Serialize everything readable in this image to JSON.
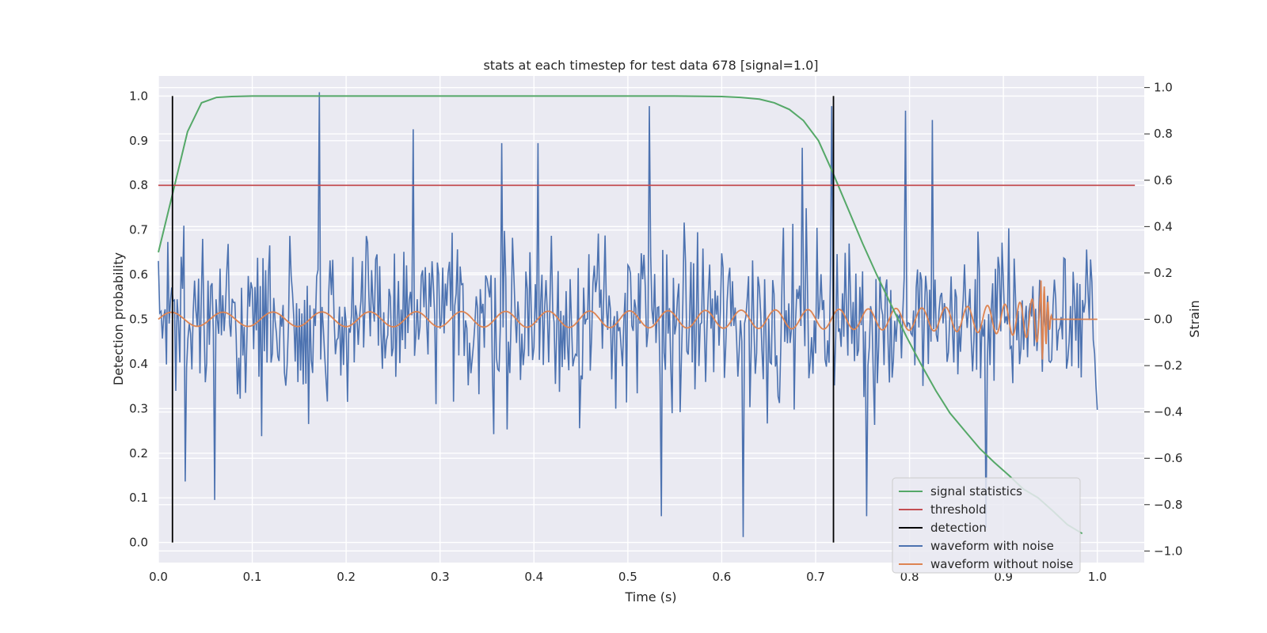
{
  "chart_data": {
    "type": "line",
    "title": "stats at each timestep for test data 678 [signal=1.0]",
    "xlabel": "Time (s)",
    "ylabel": "Detection probability",
    "y2label": "Strain",
    "xlim": [
      0.0,
      1.05
    ],
    "ylim": [
      -0.045,
      1.045
    ],
    "y2lim": [
      -1.05,
      1.05
    ],
    "xticks": [
      0.0,
      0.1,
      0.2,
      0.3,
      0.4,
      0.5,
      0.6,
      0.7,
      0.8,
      0.9,
      1.0
    ],
    "yticks": [
      0.0,
      0.1,
      0.2,
      0.3,
      0.4,
      0.5,
      0.6,
      0.7,
      0.8,
      0.9,
      1.0
    ],
    "y2ticks": [
      -1.0,
      -0.8,
      -0.6,
      -0.4,
      -0.2,
      0.0,
      0.2,
      0.4,
      0.6,
      0.8,
      1.0
    ],
    "grid": true,
    "legend_position": "lower-right",
    "series": [
      {
        "name": "signal statistics",
        "color": "#55a868",
        "axis": "left",
        "x": [
          0.0,
          0.015,
          0.031,
          0.046,
          0.062,
          0.078,
          0.1,
          0.2,
          0.3,
          0.4,
          0.5,
          0.55,
          0.6,
          0.62,
          0.64,
          0.656,
          0.672,
          0.687,
          0.703,
          0.718,
          0.734,
          0.75,
          0.765,
          0.781,
          0.797,
          0.812,
          0.828,
          0.843,
          0.859,
          0.875,
          0.89,
          0.906,
          0.921,
          0.937,
          0.953,
          0.968,
          0.984
        ],
        "y": [
          0.65,
          0.78,
          0.92,
          0.985,
          0.997,
          0.999,
          1.0,
          1.0,
          1.0,
          1.0,
          1.0,
          1.0,
          0.999,
          0.997,
          0.993,
          0.985,
          0.97,
          0.945,
          0.9,
          0.83,
          0.75,
          0.67,
          0.6,
          0.53,
          0.46,
          0.4,
          0.34,
          0.29,
          0.25,
          0.21,
          0.18,
          0.15,
          0.12,
          0.1,
          0.07,
          0.04,
          0.02
        ]
      },
      {
        "name": "threshold",
        "color": "#c44e52",
        "axis": "left",
        "x": [
          0.0,
          1.04
        ],
        "y": [
          0.8,
          0.8
        ]
      },
      {
        "name": "detection",
        "color": "#000000",
        "axis": "left",
        "segments": [
          {
            "x": 0.015,
            "y": [
              0.0,
              1.0
            ]
          },
          {
            "x": 0.719,
            "y": [
              0.0,
              1.0
            ]
          }
        ]
      },
      {
        "name": "waveform with noise",
        "color": "#4c72b0",
        "axis": "right",
        "x_start": 0.0,
        "x_end": 1.0,
        "amplitude_range": [
          -0.95,
          0.98
        ],
        "samples": 700
      },
      {
        "name": "waveform without noise",
        "color": "#dd8452",
        "axis": "right",
        "x_start": 0.0,
        "x_end": 1.0,
        "chirp_merger_time": 0.94
      }
    ],
    "legend": [
      "signal statistics",
      "threshold",
      "detection",
      "waveform with noise",
      "waveform without noise"
    ]
  }
}
